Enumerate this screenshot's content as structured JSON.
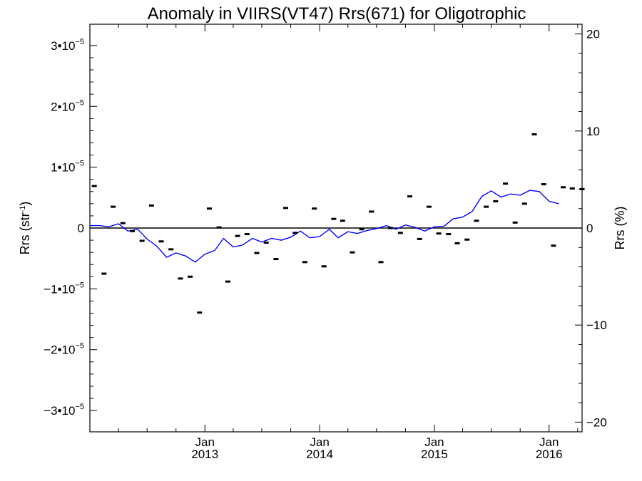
{
  "chart_data": {
    "type": "line+scatter",
    "title": "Anomaly in VIIRS(VT47) Rrs(671) for Oligotrophic",
    "ylabel_left": {
      "base": "Rrs (str",
      "sup": "-1",
      "close": ")"
    },
    "ylabel_right": "Rrs (%)",
    "xlim": [
      "2012-01-01",
      "2016-04-15"
    ],
    "ylim_left": [
      -3.35e-05,
      3.35e-05
    ],
    "ylim_right": [
      -21,
      21
    ],
    "left_ticks": [
      {
        "value": 3e-05,
        "mantissa": "3•10",
        "exp": "−5"
      },
      {
        "value": 2e-05,
        "mantissa": "2•10",
        "exp": "−5"
      },
      {
        "value": 1e-05,
        "mantissa": "1•10",
        "exp": "−5"
      },
      {
        "value": 0,
        "mantissa": "0",
        "exp": ""
      },
      {
        "value": -1e-05,
        "mantissa": "−1•10",
        "exp": "−5"
      },
      {
        "value": -2e-05,
        "mantissa": "−2•10",
        "exp": "−5"
      },
      {
        "value": -3e-05,
        "mantissa": "−3•10",
        "exp": "−5"
      }
    ],
    "right_ticks": [
      {
        "value": 20,
        "label": "20"
      },
      {
        "value": 10,
        "label": "10"
      },
      {
        "value": 0,
        "label": "0"
      },
      {
        "value": -10,
        "label": "−10"
      },
      {
        "value": -20,
        "label": "−20"
      }
    ],
    "x_major_ticks": [
      {
        "date": "2013-01-01",
        "month": "Jan",
        "year": "2013"
      },
      {
        "date": "2014-01-01",
        "month": "Jan",
        "year": "2014"
      },
      {
        "date": "2015-01-01",
        "month": "Jan",
        "year": "2015"
      },
      {
        "date": "2016-01-01",
        "month": "Jan",
        "year": "2016"
      }
    ],
    "reference_line": {
      "y": 0,
      "color": "#000000"
    },
    "series": [
      {
        "kind": "scatter",
        "marker": "dash",
        "color": "#000000",
        "points": [
          [
            "2012-01-15",
            6.9e-06
          ],
          [
            "2012-02-15",
            -7.5e-06
          ],
          [
            "2012-03-15",
            3.5e-06
          ],
          [
            "2012-04-15",
            8e-07
          ],
          [
            "2012-05-15",
            -5e-07
          ],
          [
            "2012-06-15",
            -2.1e-06
          ],
          [
            "2012-07-15",
            3.7e-06
          ],
          [
            "2012-08-15",
            -2.2e-06
          ],
          [
            "2012-09-15",
            -3.5e-06
          ],
          [
            "2012-10-15",
            -8.3e-06
          ],
          [
            "2012-11-15",
            -8e-06
          ],
          [
            "2012-12-15",
            -1.39e-05
          ],
          [
            "2013-01-15",
            3.2e-06
          ],
          [
            "2013-02-15",
            1e-07
          ],
          [
            "2013-03-15",
            -8.8e-06
          ],
          [
            "2013-04-15",
            -1.3e-06
          ],
          [
            "2013-05-15",
            -1e-06
          ],
          [
            "2013-06-15",
            -4.1e-06
          ],
          [
            "2013-07-15",
            -2.4e-06
          ],
          [
            "2013-08-15",
            -5.1e-06
          ],
          [
            "2013-09-15",
            3.3e-06
          ],
          [
            "2013-10-15",
            -8e-07
          ],
          [
            "2013-11-15",
            -5.6e-06
          ],
          [
            "2013-12-15",
            3.2e-06
          ],
          [
            "2014-01-15",
            -6.3e-06
          ],
          [
            "2014-02-15",
            1.5e-06
          ],
          [
            "2014-03-15",
            1.2e-06
          ],
          [
            "2014-04-15",
            -4e-06
          ],
          [
            "2014-05-15",
            -2e-07
          ],
          [
            "2014-06-15",
            2.7e-06
          ],
          [
            "2014-07-15",
            -5.6e-06
          ],
          [
            "2014-08-15",
            0.0
          ],
          [
            "2014-09-15",
            -8e-07
          ],
          [
            "2014-10-15",
            5.2e-06
          ],
          [
            "2014-11-15",
            -1.8e-06
          ],
          [
            "2014-12-15",
            3.5e-06
          ],
          [
            "2015-01-15",
            -9e-07
          ],
          [
            "2015-02-15",
            -1e-06
          ],
          [
            "2015-03-15",
            -2.5e-06
          ],
          [
            "2015-04-15",
            -1.9e-06
          ],
          [
            "2015-05-15",
            1.2e-06
          ],
          [
            "2015-06-15",
            3.5e-06
          ],
          [
            "2015-07-15",
            4.4e-06
          ],
          [
            "2015-08-15",
            7.3e-06
          ],
          [
            "2015-09-15",
            9e-07
          ],
          [
            "2015-10-15",
            4e-06
          ],
          [
            "2015-11-15",
            1.54e-05
          ],
          [
            "2015-12-15",
            7.2e-06
          ],
          [
            "2016-01-15",
            -2.9e-06
          ],
          [
            "2016-02-15",
            6.7e-06
          ],
          [
            "2016-03-15",
            6.5e-06
          ],
          [
            "2016-04-15",
            6.4e-06
          ]
        ]
      },
      {
        "kind": "line",
        "color": "#0000ff",
        "points": [
          [
            "2012-01-01",
            4e-07
          ],
          [
            "2012-02-01",
            4e-07
          ],
          [
            "2012-03-01",
            2e-07
          ],
          [
            "2012-04-01",
            7e-07
          ],
          [
            "2012-05-01",
            -5e-07
          ],
          [
            "2012-06-01",
            -2e-07
          ],
          [
            "2012-07-01",
            -1.8e-06
          ],
          [
            "2012-08-01",
            -3e-06
          ],
          [
            "2012-09-01",
            -4.8e-06
          ],
          [
            "2012-10-01",
            -4.1e-06
          ],
          [
            "2012-11-01",
            -4.6e-06
          ],
          [
            "2012-12-01",
            -5.6e-06
          ],
          [
            "2013-01-01",
            -4.3e-06
          ],
          [
            "2013-02-01",
            -3.7e-06
          ],
          [
            "2013-03-01",
            -1.7e-06
          ],
          [
            "2013-04-01",
            -3.1e-06
          ],
          [
            "2013-05-01",
            -2.8e-06
          ],
          [
            "2013-06-01",
            -1.7e-06
          ],
          [
            "2013-07-01",
            -2.3e-06
          ],
          [
            "2013-08-01",
            -1.7e-06
          ],
          [
            "2013-09-01",
            -2e-06
          ],
          [
            "2013-10-01",
            -1.5e-06
          ],
          [
            "2013-11-01",
            -5e-07
          ],
          [
            "2013-12-01",
            -1.6e-06
          ],
          [
            "2014-01-01",
            -1.4e-06
          ],
          [
            "2014-02-01",
            -2e-07
          ],
          [
            "2014-03-01",
            -1.6e-06
          ],
          [
            "2014-04-01",
            -6e-07
          ],
          [
            "2014-05-01",
            -9e-07
          ],
          [
            "2014-06-01",
            -4e-07
          ],
          [
            "2014-07-01",
            -1e-07
          ],
          [
            "2014-08-01",
            4e-07
          ],
          [
            "2014-09-01",
            -2e-07
          ],
          [
            "2014-10-01",
            5e-07
          ],
          [
            "2014-11-01",
            1e-07
          ],
          [
            "2014-12-01",
            -5e-07
          ],
          [
            "2015-01-01",
            2e-07
          ],
          [
            "2015-02-01",
            3e-07
          ],
          [
            "2015-03-01",
            1.5e-06
          ],
          [
            "2015-04-01",
            1.8e-06
          ],
          [
            "2015-05-01",
            2.7e-06
          ],
          [
            "2015-06-01",
            5.2e-06
          ],
          [
            "2015-07-01",
            6.1e-06
          ],
          [
            "2015-08-01",
            5.1e-06
          ],
          [
            "2015-09-01",
            5.6e-06
          ],
          [
            "2015-10-01",
            5.4e-06
          ],
          [
            "2015-11-01",
            6.2e-06
          ],
          [
            "2015-12-01",
            6e-06
          ],
          [
            "2016-01-01",
            4.4e-06
          ],
          [
            "2016-02-01",
            4e-06
          ]
        ]
      }
    ]
  }
}
